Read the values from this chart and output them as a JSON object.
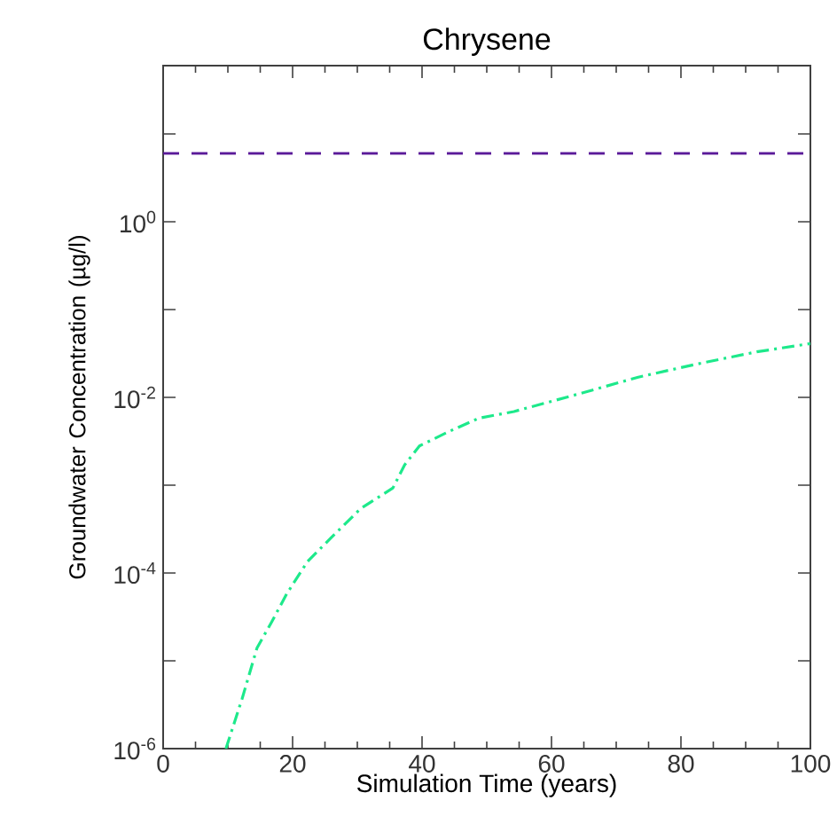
{
  "chart_data": {
    "type": "line",
    "title": "Chrysene",
    "xlabel": "Simulation Time (years)",
    "ylabel": "Groundwater Concentration (µg/l)",
    "log": "y",
    "grid": false,
    "marker": "none",
    "xlim": [
      0,
      100
    ],
    "xticks": [
      0,
      20,
      40,
      60,
      80,
      100
    ],
    "ylim": [
      1e-06,
      60
    ],
    "yticks": [
      {
        "value": 1e-06,
        "label": "10$^{-6}$"
      },
      {
        "value": 1e-05,
        "label": null
      },
      {
        "value": 0.0001,
        "label": "10$^{-4}$"
      },
      {
        "value": 0.001,
        "label": null
      },
      {
        "value": 0.01,
        "label": "10$^{-2}$"
      },
      {
        "value": 0.1,
        "label": null
      },
      {
        "value": 1,
        "label": "10$^{0}$"
      },
      {
        "value": 10,
        "label": null
      }
    ],
    "ref_lines": [
      {
        "axis": "y",
        "value": 6,
        "color": "#5b1a99",
        "line_style": "dashed"
      }
    ],
    "series": [
      {
        "color": "#1de98b",
        "line_style": "dashdot",
        "x": [
          9.7,
          12.2,
          14.5,
          16.8,
          19.1,
          22.3,
          25.9,
          30.5,
          35.5,
          37.3,
          39.6,
          44.2,
          48.8,
          54.2,
          64.3,
          73.4,
          82.5,
          91.7,
          100
        ],
        "values": [
          1e-06,
          3.7e-06,
          1.4e-05,
          2.8e-05,
          5.8e-05,
          0.000135,
          0.00025,
          0.00054,
          0.00093,
          0.0017,
          0.0028,
          0.0041,
          0.0058,
          0.0069,
          0.011,
          0.017,
          0.024,
          0.033,
          0.041
        ]
      }
    ]
  }
}
